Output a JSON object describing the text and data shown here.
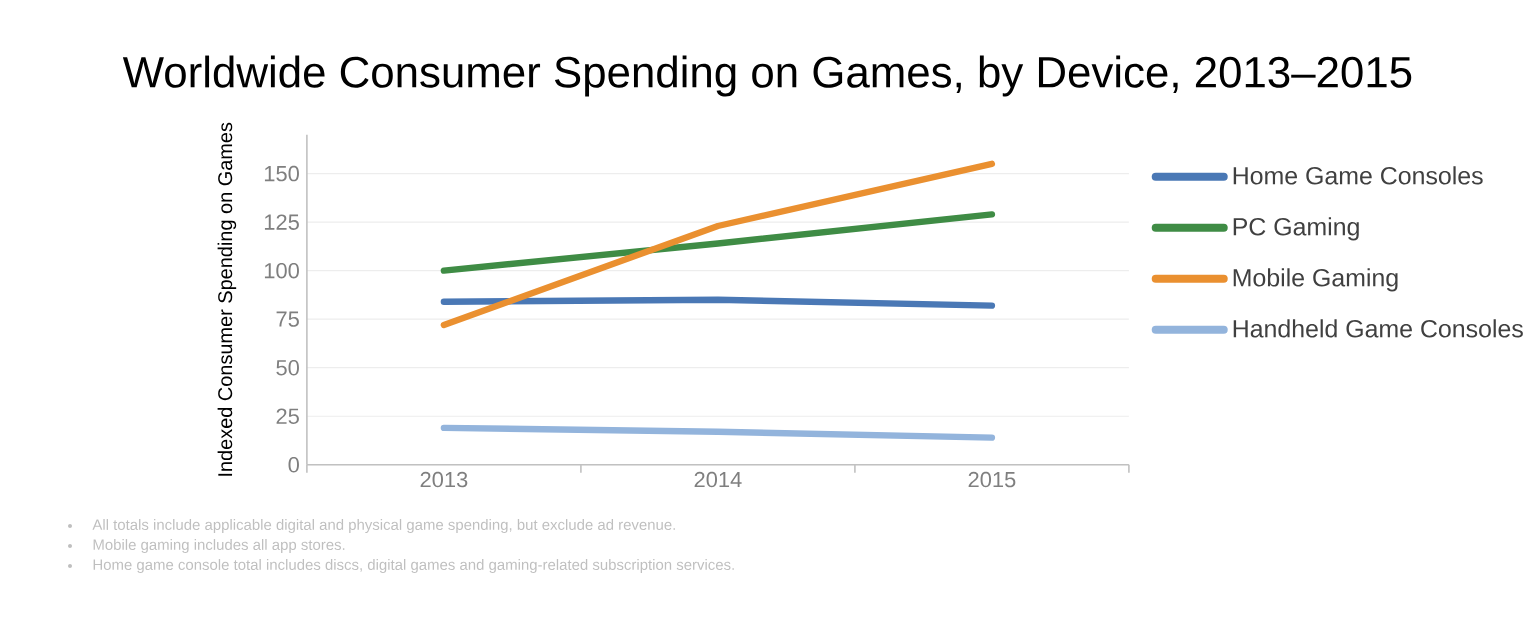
{
  "chart_data": {
    "type": "line",
    "title": "Worldwide Consumer Spending on Games, by Device, 2013–2015",
    "ylabel": "Indexed Consumer Spending on Games",
    "categories": [
      "2013",
      "2014",
      "2015"
    ],
    "series": [
      {
        "name": "Home Game Consoles",
        "color": "#4a78b5",
        "values": [
          84,
          85,
          82
        ]
      },
      {
        "name": "PC Gaming",
        "color": "#3f8c45",
        "values": [
          100,
          114,
          129
        ]
      },
      {
        "name": "Mobile Gaming",
        "color": "#ea9030",
        "values": [
          72,
          123,
          155
        ]
      },
      {
        "name": "Handheld Game Consoles",
        "color": "#93b4dc",
        "values": [
          19,
          17,
          14
        ]
      }
    ],
    "ylim": [
      0,
      170
    ],
    "yticks": [
      0,
      25,
      50,
      75,
      100,
      125,
      150
    ],
    "grid": "y",
    "legend": "right",
    "marker": "none",
    "line_style": "solid",
    "annotations": [
      "All totals include applicable digital and physical game spending, but exclude ad revenue.",
      "Mobile gaming includes all app stores.",
      "Home game console total includes discs, digital games and gaming-related subscription services."
    ]
  }
}
